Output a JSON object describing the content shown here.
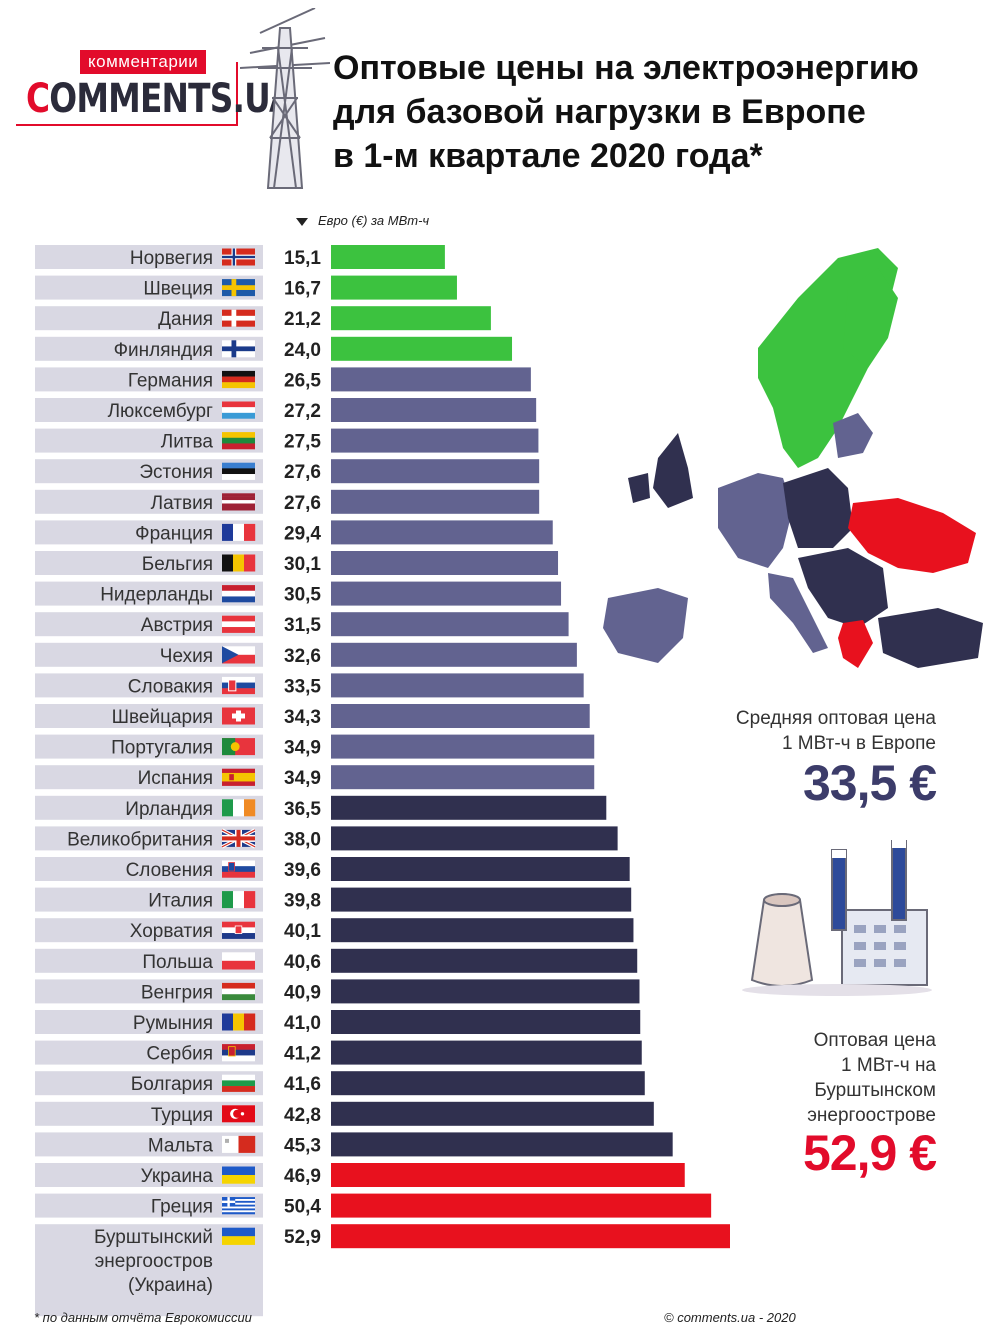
{
  "brand": {
    "tagline": "комментарии",
    "name_accent": "C",
    "name_rest": "OMMENTS.UA"
  },
  "title": {
    "line1": "Оптовые цены на электроэнергию",
    "line2": "для базовой нагрузки в Европе",
    "line3": "в 1-м квартале 2020 года*"
  },
  "unit_label": "Евро (€) за МВт-ч",
  "summary": {
    "average_label_1": "Средняя оптовая цена",
    "average_label_2": "1 МВт-ч в Европе",
    "average_value": "33,5 €",
    "burshtyn_label_1": "Оптовая цена",
    "burshtyn_label_2": "1 МВт-ч на",
    "burshtyn_label_3": "Бурштынском",
    "burshtyn_label_4": "энергоострове",
    "burshtyn_value": "52,9 €"
  },
  "footer": {
    "footnote": "* по данным отчёта Еврокомиссии",
    "copyright": "© comments.ua - 2020"
  },
  "colors": {
    "green": "#3cc23f",
    "lavender": "#626390",
    "navy": "#30304f",
    "red": "#e8111e",
    "row_bg": "#d9d8e3",
    "brand_red": "#e20b2b"
  },
  "chart_data": {
    "type": "bar",
    "orientation": "horizontal",
    "unit": "Евро (€) за МВт-ч",
    "categories": [
      "Норвегия",
      "Швеция",
      "Дания",
      "Финляндия",
      "Германия",
      "Люксембург",
      "Литва",
      "Эстония",
      "Латвия",
      "Франция",
      "Бельгия",
      "Нидерланды",
      "Австрия",
      "Чехия",
      "Словакия",
      "Швейцария",
      "Португалия",
      "Испания",
      "Ирландия",
      "Великобритания",
      "Словения",
      "Италия",
      "Хорватия",
      "Польша",
      "Венгрия",
      "Румыния",
      "Сербия",
      "Болгария",
      "Турция",
      "Мальта",
      "Украина",
      "Греция",
      "Бурштынский энергоостров (Украина)"
    ],
    "label_lines": [
      [
        "Норвегия"
      ],
      [
        "Швеция"
      ],
      [
        "Дания"
      ],
      [
        "Финляндия"
      ],
      [
        "Германия"
      ],
      [
        "Люксембург"
      ],
      [
        "Литва"
      ],
      [
        "Эстония"
      ],
      [
        "Латвия"
      ],
      [
        "Франция"
      ],
      [
        "Бельгия"
      ],
      [
        "Нидерланды"
      ],
      [
        "Австрия"
      ],
      [
        "Чехия"
      ],
      [
        "Словакия"
      ],
      [
        "Швейцария"
      ],
      [
        "Португалия"
      ],
      [
        "Испания"
      ],
      [
        "Ирландия"
      ],
      [
        "Великобритания"
      ],
      [
        "Словения"
      ],
      [
        "Италия"
      ],
      [
        "Хорватия"
      ],
      [
        "Польша"
      ],
      [
        "Венгрия"
      ],
      [
        "Румыния"
      ],
      [
        "Сербия"
      ],
      [
        "Болгария"
      ],
      [
        "Турция"
      ],
      [
        "Мальта"
      ],
      [
        "Украина"
      ],
      [
        "Греция"
      ],
      [
        "Бурштынский",
        "энергоостров",
        "(Украина)"
      ]
    ],
    "values": [
      15.1,
      16.7,
      21.2,
      24.0,
      26.5,
      27.2,
      27.5,
      27.6,
      27.6,
      29.4,
      30.1,
      30.5,
      31.5,
      32.6,
      33.5,
      34.3,
      34.9,
      34.9,
      36.5,
      38.0,
      39.6,
      39.8,
      40.1,
      40.6,
      40.9,
      41.0,
      41.2,
      41.6,
      42.8,
      45.3,
      46.9,
      50.4,
      52.9
    ],
    "value_labels": [
      "15,1",
      "16,7",
      "21,2",
      "24,0",
      "26,5",
      "27,2",
      "27,5",
      "27,6",
      "27,6",
      "29,4",
      "30,1",
      "30,5",
      "31,5",
      "32,6",
      "33,5",
      "34,3",
      "34,9",
      "34,9",
      "36,5",
      "38,0",
      "39,6",
      "39,8",
      "40,1",
      "40,6",
      "40,9",
      "41,0",
      "41,2",
      "41,6",
      "42,8",
      "45,3",
      "46,9",
      "50,4",
      "52,9"
    ],
    "groups": [
      "green",
      "green",
      "green",
      "green",
      "lavender",
      "lavender",
      "lavender",
      "lavender",
      "lavender",
      "lavender",
      "lavender",
      "lavender",
      "lavender",
      "lavender",
      "lavender",
      "lavender",
      "lavender",
      "lavender",
      "navy",
      "navy",
      "navy",
      "navy",
      "navy",
      "navy",
      "navy",
      "navy",
      "navy",
      "navy",
      "navy",
      "navy",
      "red",
      "red",
      "red"
    ],
    "flags": [
      "norway",
      "sweden",
      "denmark",
      "finland",
      "germany",
      "luxembourg",
      "lithuania",
      "estonia",
      "latvia",
      "france",
      "belgium",
      "netherlands",
      "austria",
      "czechia",
      "slovakia",
      "switzerland",
      "portugal",
      "spain",
      "ireland",
      "uk",
      "slovenia",
      "italy",
      "croatia",
      "poland",
      "hungary",
      "romania",
      "serbia",
      "bulgaria",
      "turkey",
      "malta",
      "ukraine",
      "greece",
      "ukraine"
    ],
    "xlim": [
      0,
      52.9
    ],
    "grid": false,
    "legend": "none"
  }
}
